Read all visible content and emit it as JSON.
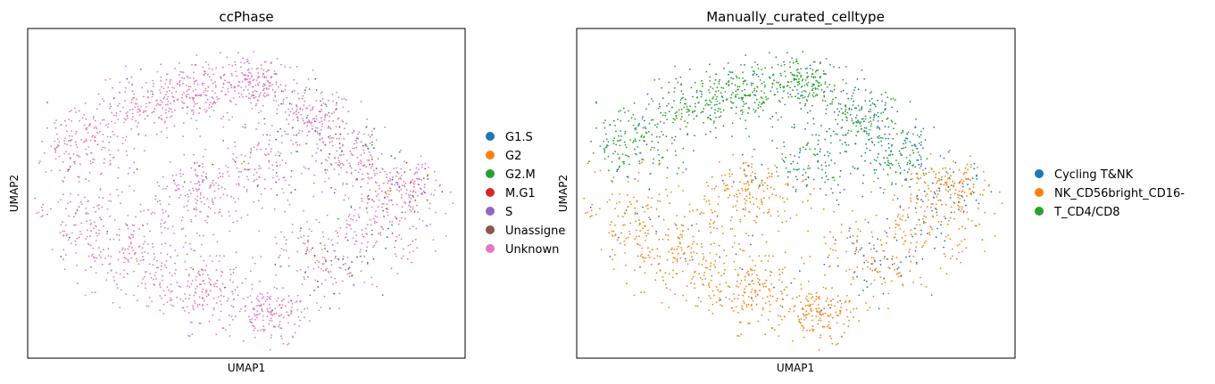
{
  "chart_data": [
    {
      "type": "scatter",
      "title": "ccPhase",
      "xlabel": "UMAP1",
      "ylabel": "UMAP2",
      "ticks": false,
      "legend": "right",
      "categories": [
        {
          "name": "G1.S",
          "color": "#1f77b4"
        },
        {
          "name": "G2",
          "color": "#ff7f0e"
        },
        {
          "name": "G2.M",
          "color": "#2ca02c"
        },
        {
          "name": "M.G1",
          "color": "#d62728"
        },
        {
          "name": "S",
          "color": "#9467bd"
        },
        {
          "name": "Unassigned",
          "color": "#8c564b"
        },
        {
          "name": "Unknown",
          "color": "#e377c2"
        }
      ],
      "legend_display": [
        "G1.S",
        "G2",
        "G2.M",
        "M.G1",
        "S",
        "Unassigne",
        "Unknown"
      ]
    },
    {
      "type": "scatter",
      "title": "Manually_curated_celltype",
      "xlabel": "UMAP1",
      "ylabel": "UMAP2",
      "ticks": false,
      "legend": "right",
      "categories": [
        {
          "name": "Cycling T&NK",
          "color": "#1f77b4"
        },
        {
          "name": "NK_CD56bright_CD16-",
          "color": "#ff7f0e"
        },
        {
          "name": "T_CD4/CD8",
          "color": "#2ca02c"
        }
      ],
      "legend_display": [
        "Cycling T&NK",
        "NK_CD56bright_CD16-",
        "T_CD4/CD8"
      ]
    }
  ]
}
